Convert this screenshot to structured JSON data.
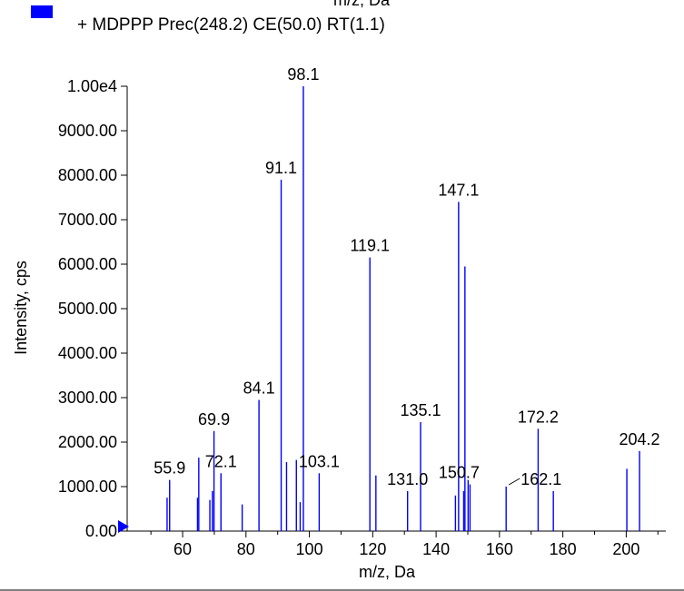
{
  "chart_data": {
    "type": "bar",
    "top_cut_label": "m/z, Da",
    "legend": {
      "label": "+ MDPPP Prec(248.2) CE(50.0) RT(1.1)",
      "color": "#0000ff"
    },
    "xlabel": "m/z, Da",
    "ylabel": "Intensity, cps",
    "xlim": [
      42.5,
      212.5
    ],
    "ylim": [
      0,
      10000
    ],
    "x_ticks": [
      60,
      80,
      100,
      120,
      140,
      160,
      180,
      200
    ],
    "y_ticks": [
      {
        "value": 0,
        "label": "0.00"
      },
      {
        "value": 1000,
        "label": "1000.00"
      },
      {
        "value": 2000,
        "label": "2000.00"
      },
      {
        "value": 3000,
        "label": "3000.00"
      },
      {
        "value": 4000,
        "label": "4000.00"
      },
      {
        "value": 5000,
        "label": "5000.00"
      },
      {
        "value": 6000,
        "label": "6000.00"
      },
      {
        "value": 7000,
        "label": "7000.00"
      },
      {
        "value": 8000,
        "label": "8000.00"
      },
      {
        "value": 9000,
        "label": "9000.00"
      },
      {
        "value": 10000,
        "label": "1.00e4"
      }
    ],
    "bar_color": "#0000ff",
    "peaks": [
      {
        "x": 55.1,
        "y": 750
      },
      {
        "x": 55.9,
        "y": 1150,
        "label": "55.9"
      },
      {
        "x": 64.7,
        "y": 750
      },
      {
        "x": 65.1,
        "y": 1650
      },
      {
        "x": 68.6,
        "y": 700
      },
      {
        "x": 69.4,
        "y": 900
      },
      {
        "x": 69.9,
        "y": 2250,
        "label": "69.9"
      },
      {
        "x": 72.1,
        "y": 1300,
        "label": "72.1"
      },
      {
        "x": 78.8,
        "y": 600
      },
      {
        "x": 84.1,
        "y": 2950,
        "label": "84.1"
      },
      {
        "x": 91.1,
        "y": 7900,
        "label": "91.1"
      },
      {
        "x": 92.8,
        "y": 1550
      },
      {
        "x": 95.9,
        "y": 1600
      },
      {
        "x": 97.1,
        "y": 650
      },
      {
        "x": 98.1,
        "y": 10000,
        "label": "98.1"
      },
      {
        "x": 103.1,
        "y": 1300,
        "label": "103.1"
      },
      {
        "x": 119.1,
        "y": 6150,
        "label": "119.1"
      },
      {
        "x": 121.0,
        "y": 1250
      },
      {
        "x": 131.0,
        "y": 900,
        "label": "131.0"
      },
      {
        "x": 135.1,
        "y": 2450,
        "label": "135.1"
      },
      {
        "x": 146.1,
        "y": 800
      },
      {
        "x": 147.1,
        "y": 7400,
        "label": "147.1"
      },
      {
        "x": 148.7,
        "y": 900
      },
      {
        "x": 149.1,
        "y": 5950
      },
      {
        "x": 150.1,
        "y": 1150
      },
      {
        "x": 150.7,
        "y": 1050,
        "label": "150.7"
      },
      {
        "x": 162.1,
        "y": 1000,
        "label": "162.1"
      },
      {
        "x": 172.2,
        "y": 2300,
        "label": "172.2"
      },
      {
        "x": 177.0,
        "y": 900
      },
      {
        "x": 200.2,
        "y": 1400
      },
      {
        "x": 204.2,
        "y": 1800,
        "label": "204.2"
      }
    ]
  }
}
